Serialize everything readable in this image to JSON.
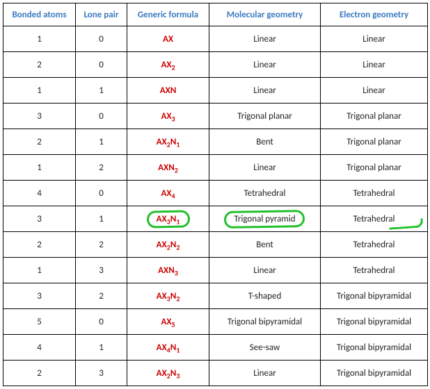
{
  "table": {
    "headers": {
      "bonded": "Bonded atoms",
      "lone": "Lone pair",
      "formula": "Generic formula",
      "mol": "Molecular geometry",
      "elec": "Electron geometry"
    },
    "header_color": "#3a7ac0",
    "formula_color": "#cc0000",
    "border_color": "#000000",
    "annotation_color": "#22c02a",
    "rows": [
      {
        "bonded": "1",
        "lone": "0",
        "formula_html": "AX",
        "mol": "Linear",
        "elec": "Linear",
        "circled": false,
        "elec_mark": false
      },
      {
        "bonded": "2",
        "lone": "0",
        "formula_html": "AX<sub>2</sub>",
        "mol": "Linear",
        "elec": "Linear",
        "circled": false,
        "elec_mark": false
      },
      {
        "bonded": "1",
        "lone": "1",
        "formula_html": "AXN",
        "mol": "Linear",
        "elec": "Linear",
        "circled": false,
        "elec_mark": false
      },
      {
        "bonded": "3",
        "lone": "0",
        "formula_html": "AX<sub>3</sub>",
        "mol": "Trigonal planar",
        "elec": "Trigonal planar",
        "circled": false,
        "elec_mark": false
      },
      {
        "bonded": "2",
        "lone": "1",
        "formula_html": "AX<sub>2</sub>N<sub>1</sub>",
        "mol": "Bent",
        "elec": "Trigonal planar",
        "circled": false,
        "elec_mark": false
      },
      {
        "bonded": "1",
        "lone": "2",
        "formula_html": "AXN<sub>2</sub>",
        "mol": "Linear",
        "elec": "Trigonal planar",
        "circled": false,
        "elec_mark": false
      },
      {
        "bonded": "4",
        "lone": "0",
        "formula_html": "AX<sub>4</sub>",
        "mol": "Tetrahedral",
        "elec": "Tetrahedral",
        "circled": false,
        "elec_mark": false
      },
      {
        "bonded": "3",
        "lone": "1",
        "formula_html": "AX<sub>3</sub>N<sub>1</sub>",
        "mol": "Trigonal pyramid",
        "elec": "Tetrahedral",
        "circled": true,
        "elec_mark": true
      },
      {
        "bonded": "2",
        "lone": "2",
        "formula_html": "AX<sub>2</sub>N<sub>2</sub>",
        "mol": "Bent",
        "elec": "Tetrahedral",
        "circled": false,
        "elec_mark": false
      },
      {
        "bonded": "1",
        "lone": "3",
        "formula_html": "AXN<sub>3</sub>",
        "mol": "Linear",
        "elec": "Tetrahedral",
        "circled": false,
        "elec_mark": false
      },
      {
        "bonded": "3",
        "lone": "2",
        "formula_html": "AX<sub>3</sub>N<sub>2</sub>",
        "mol": "T-shaped",
        "elec": "Trigonal bipyramidal",
        "circled": false,
        "elec_mark": false
      },
      {
        "bonded": "5",
        "lone": "0",
        "formula_html": "AX<sub>5</sub>",
        "mol": "Trigonal bipyramidal",
        "elec": "Trigonal bipyramidal",
        "circled": false,
        "elec_mark": false
      },
      {
        "bonded": "4",
        "lone": "1",
        "formula_html": "AX<sub>4</sub>N<sub>1</sub>",
        "mol": "See-saw",
        "elec": "Trigonal bipyramidal",
        "circled": false,
        "elec_mark": false
      },
      {
        "bonded": "2",
        "lone": "3",
        "formula_html": "AX<sub>2</sub>N<sub>3</sub>",
        "mol": "Linear",
        "elec": "Trigonal bipyramidal",
        "circled": false,
        "elec_mark": false
      }
    ]
  }
}
